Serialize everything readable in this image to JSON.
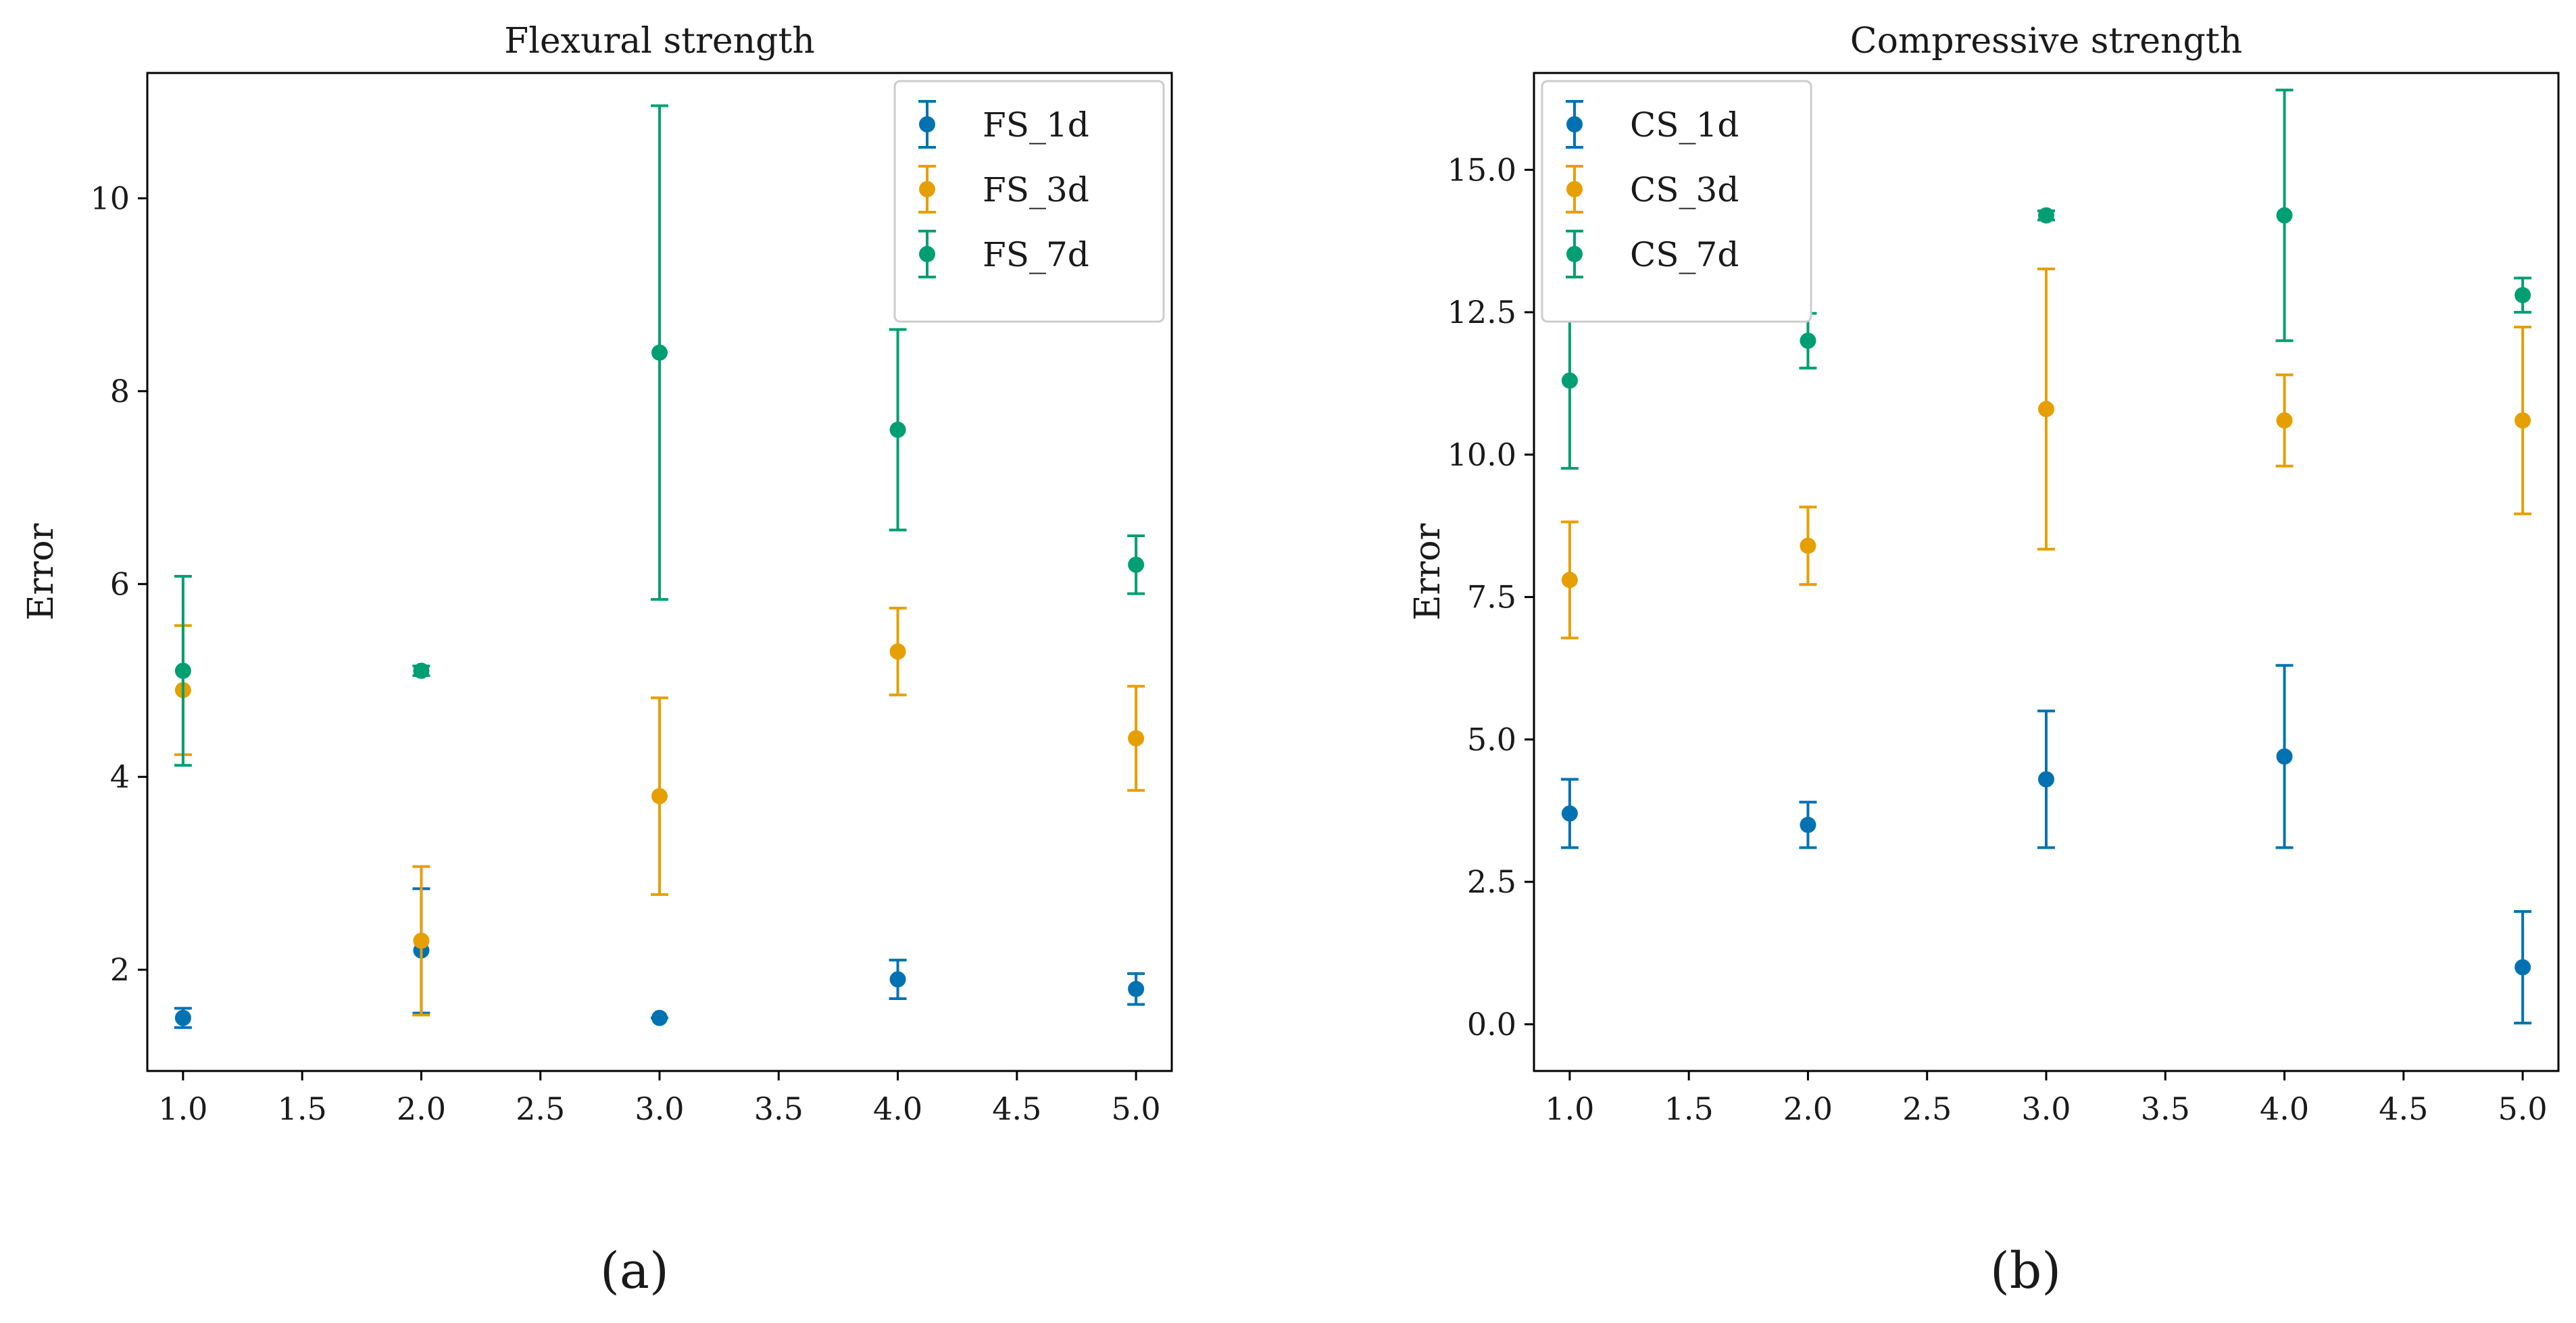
{
  "chart_data": [
    {
      "type": "scatter",
      "subtitle_label": "(a)",
      "title": "Flexural strength",
      "xlabel": "",
      "ylabel": "Error",
      "xlim": [
        0.85,
        5.15
      ],
      "ylim": [
        0.95,
        11.3
      ],
      "xticks": [
        1.0,
        1.5,
        2.0,
        2.5,
        3.0,
        3.5,
        4.0,
        4.5,
        5.0
      ],
      "xtick_labels": [
        "1.0",
        "1.5",
        "2.0",
        "2.5",
        "3.0",
        "3.5",
        "4.0",
        "4.5",
        "5.0"
      ],
      "yticks": [
        2,
        4,
        6,
        8,
        10
      ],
      "ytick_labels": [
        "2",
        "4",
        "6",
        "8",
        "10"
      ],
      "legend_position": "top-right",
      "series": [
        {
          "name": "FS_1d",
          "color": "#0072B2",
          "x": [
            1,
            2,
            3,
            4,
            5
          ],
          "y": [
            1.5,
            2.2,
            1.5,
            1.9,
            1.8
          ],
          "err_low": [
            1.4,
            1.55,
            1.5,
            1.7,
            1.64
          ],
          "err_high": [
            1.6,
            2.84,
            1.5,
            2.1,
            1.96
          ]
        },
        {
          "name": "FS_3d",
          "color": "#E69F00",
          "x": [
            1,
            2,
            3,
            4,
            5
          ],
          "y": [
            4.9,
            2.3,
            3.8,
            5.3,
            4.4
          ],
          "err_low": [
            4.23,
            1.53,
            2.78,
            4.85,
            3.86
          ],
          "err_high": [
            5.57,
            3.07,
            4.82,
            5.75,
            4.94
          ]
        },
        {
          "name": "FS_7d",
          "color": "#009E73",
          "x": [
            1,
            2,
            3,
            4,
            5
          ],
          "y": [
            5.1,
            5.1,
            8.4,
            7.6,
            6.2
          ],
          "err_low": [
            4.12,
            5.05,
            5.84,
            6.56,
            5.9
          ],
          "err_high": [
            6.08,
            5.15,
            10.96,
            8.64,
            6.5
          ]
        }
      ]
    },
    {
      "type": "scatter",
      "subtitle_label": "(b)",
      "title": "Compressive strength",
      "xlabel": "",
      "ylabel": "Error",
      "xlim": [
        0.85,
        5.15
      ],
      "ylim": [
        -0.82,
        16.7
      ],
      "xticks": [
        1.0,
        1.5,
        2.0,
        2.5,
        3.0,
        3.5,
        4.0,
        4.5,
        5.0
      ],
      "xtick_labels": [
        "1.0",
        "1.5",
        "2.0",
        "2.5",
        "3.0",
        "3.5",
        "4.0",
        "4.5",
        "5.0"
      ],
      "yticks": [
        0.0,
        2.5,
        5.0,
        7.5,
        10.0,
        12.5,
        15.0
      ],
      "ytick_labels": [
        "0.0",
        "2.5",
        "5.0",
        "7.5",
        "10.0",
        "12.5",
        "15.0"
      ],
      "legend_position": "top-left",
      "series": [
        {
          "name": "CS_1d",
          "color": "#0072B2",
          "x": [
            1,
            2,
            3,
            4,
            5
          ],
          "y": [
            3.7,
            3.5,
            4.3,
            4.7,
            1.0
          ],
          "err_low": [
            3.1,
            3.1,
            3.1,
            3.1,
            0.02
          ],
          "err_high": [
            4.3,
            3.9,
            5.5,
            6.3,
            1.98
          ]
        },
        {
          "name": "CS_3d",
          "color": "#E69F00",
          "x": [
            1,
            2,
            3,
            4,
            5
          ],
          "y": [
            7.8,
            8.4,
            10.8,
            10.6,
            10.6
          ],
          "err_low": [
            6.78,
            7.72,
            8.34,
            9.8,
            8.96
          ],
          "err_high": [
            8.82,
            9.08,
            13.26,
            11.4,
            12.24
          ]
        },
        {
          "name": "CS_7d",
          "color": "#009E73",
          "x": [
            1,
            2,
            3,
            4,
            5
          ],
          "y": [
            11.3,
            12.0,
            14.2,
            14.2,
            12.8
          ],
          "err_low": [
            9.76,
            11.52,
            14.12,
            12.0,
            12.5
          ],
          "err_high": [
            12.84,
            12.48,
            14.28,
            16.4,
            13.1
          ]
        }
      ]
    }
  ]
}
